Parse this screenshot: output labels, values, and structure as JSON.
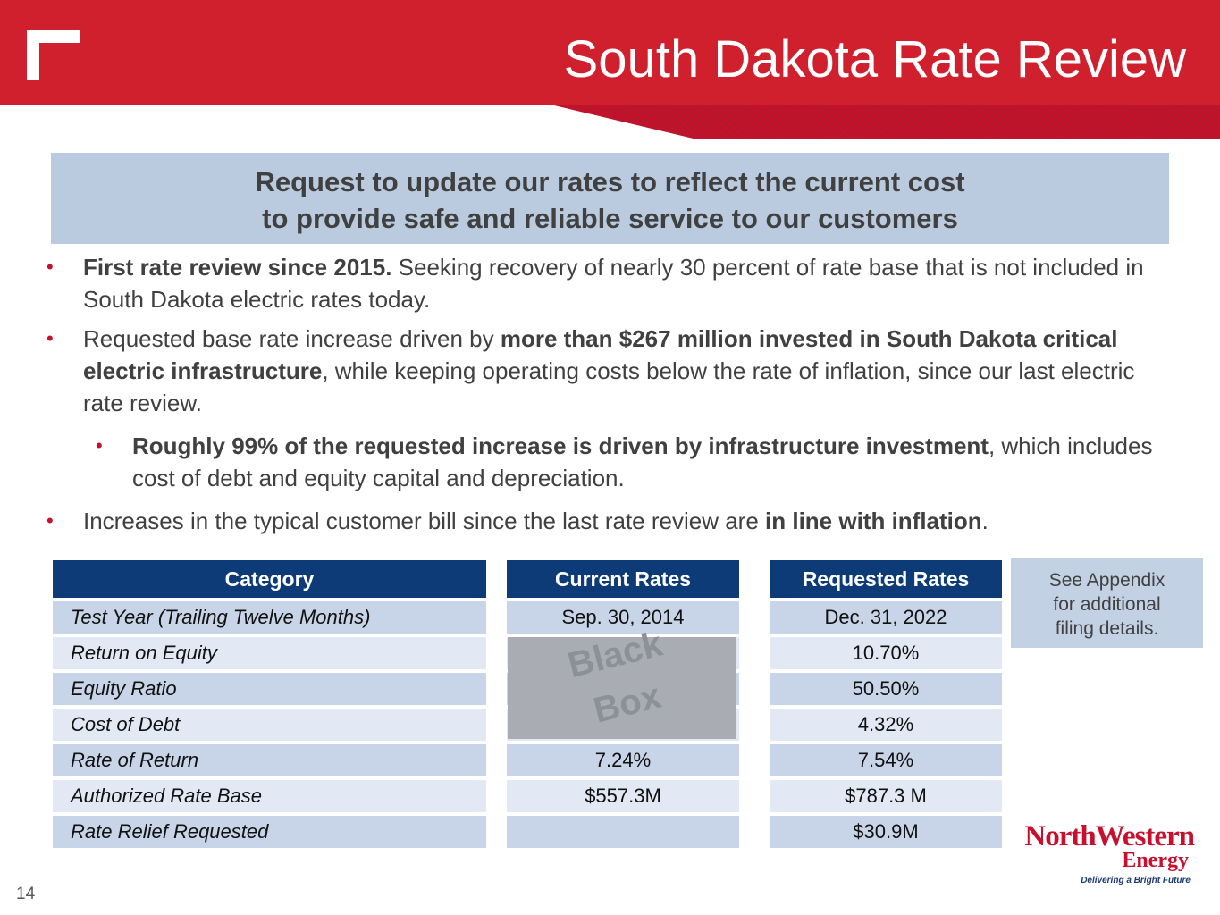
{
  "slide": {
    "title": "South Dakota Rate Review",
    "page_number": "14"
  },
  "callout": {
    "line1": "Request to update our rates to reflect the current cost",
    "line2": "to provide safe and reliable service to our customers"
  },
  "bullets": [
    {
      "bold": "First rate review since 2015.",
      "text": "  Seeking recovery of nearly 30 percent of rate base that is not included in South Dakota electric rates today."
    },
    {
      "text_before": "Requested base rate increase driven by ",
      "bold": "more than $267 million invested in South Dakota critical electric infrastructure",
      "text_after": ", while keeping operating costs below the rate of inflation, since our last electric rate review."
    },
    {
      "bold": "Roughly 99% of the requested increase is driven by infrastructure investment",
      "text": ", which includes cost of debt and equity capital and depreciation."
    },
    {
      "text_before": "Increases in the typical customer bill since the last rate review are ",
      "bold": "in line with inflation",
      "text_after": "."
    }
  ],
  "rate_table": {
    "headers": {
      "category": "Category",
      "current": "Current Rates",
      "requested": "Requested Rates"
    },
    "rows": [
      {
        "category": "Test Year (Trailing Twelve Months)",
        "current": "Sep. 30, 2014",
        "requested": "Dec. 31, 2022"
      },
      {
        "category": "Return on Equity",
        "current": "",
        "requested": "10.70%"
      },
      {
        "category": "Equity Ratio",
        "current": "",
        "requested": "50.50%"
      },
      {
        "category": "Cost of Debt",
        "current": "",
        "requested": "4.32%"
      },
      {
        "category": "Rate of Return",
        "current": "7.24%",
        "requested": "7.54%"
      },
      {
        "category": "Authorized Rate Base",
        "current": "$557.3M",
        "requested": "$787.3 M"
      },
      {
        "category": "Rate Relief Requested",
        "current": "",
        "requested": "$30.9M"
      }
    ],
    "black_box": {
      "line1": "Black",
      "line2": "Box"
    }
  },
  "appendix_note": {
    "line1": "See Appendix",
    "line2": "for additional",
    "line3": "filing details."
  },
  "brand": {
    "name": "NorthWestern",
    "energy": "Energy",
    "tagline": "Delivering a Bright Future"
  },
  "colors": {
    "header_red": "#d0202e",
    "navy": "#0d3b77",
    "callout_blue": "#bacbdf",
    "row_dark": "#c8d5e8",
    "row_light": "#e2e9f4"
  },
  "icons": {
    "logo": "corner-bracket-logo"
  }
}
